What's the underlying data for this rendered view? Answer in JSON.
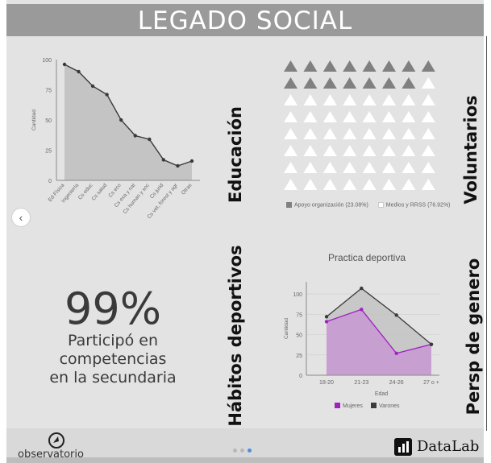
{
  "banner": {
    "title": "LEGADO SOCIAL"
  },
  "sections": {
    "educacion": "Educación",
    "voluntarios": "Voluntarios",
    "habitos": "Hábitos deportivos",
    "genero": "Persp de genero"
  },
  "stat": {
    "value": "99%",
    "line1": "Participó en",
    "line2": "competencias",
    "line3": "en la secundaria"
  },
  "volunteer": {
    "filled": 15,
    "total": 64,
    "filled_color": "#808080",
    "empty_color": "#ffffff",
    "legend": [
      {
        "label": "Apoyo organización (23.08%)",
        "color": "#808080"
      },
      {
        "label": "Medios y RRSS (76.92%)",
        "color": "#ffffff"
      }
    ]
  },
  "footer": {
    "logo_text": "observatorio",
    "brand": "DataLab",
    "dots_active": 2
  },
  "icons": {
    "nav": "chevron-left-icon",
    "brand": "bar-chart-icon"
  },
  "chart_data": [
    {
      "type": "area",
      "title": "",
      "ylabel": "Cantidad",
      "xlabel": "",
      "ylim": [
        0,
        100
      ],
      "yticks": [
        0,
        25,
        50,
        75,
        100
      ],
      "categories": [
        "Ed Física",
        "Ingeniería",
        "Cs educ",
        "Cs salud",
        "Cs eco",
        "Cs exa y nat",
        "Cs human y soc",
        "Cs jurid",
        "Cs vet, forest y agr",
        "Otras"
      ],
      "values": [
        96,
        90,
        78,
        71,
        50,
        37,
        34,
        17,
        12,
        16
      ],
      "color": "#3a3a3a",
      "fill": "#c4c4c4"
    },
    {
      "type": "area",
      "title": "Practica deportiva",
      "xlabel": "Edad",
      "ylabel": "Cantidad",
      "ylim": [
        0,
        100
      ],
      "yticks": [
        0,
        25,
        50,
        75,
        100
      ],
      "categories": [
        "18-20",
        "21-23",
        "24-26",
        "27 o +"
      ],
      "series": [
        {
          "name": "Mujeres",
          "values": [
            66,
            81,
            27,
            38
          ],
          "color": "#a020c0",
          "fill": "#c79ad0"
        },
        {
          "name": "Varones",
          "values": [
            72,
            107,
            74,
            38
          ],
          "color": "#3a3a3a",
          "fill": "#c4c4c4"
        }
      ],
      "legend": "bottom"
    }
  ]
}
